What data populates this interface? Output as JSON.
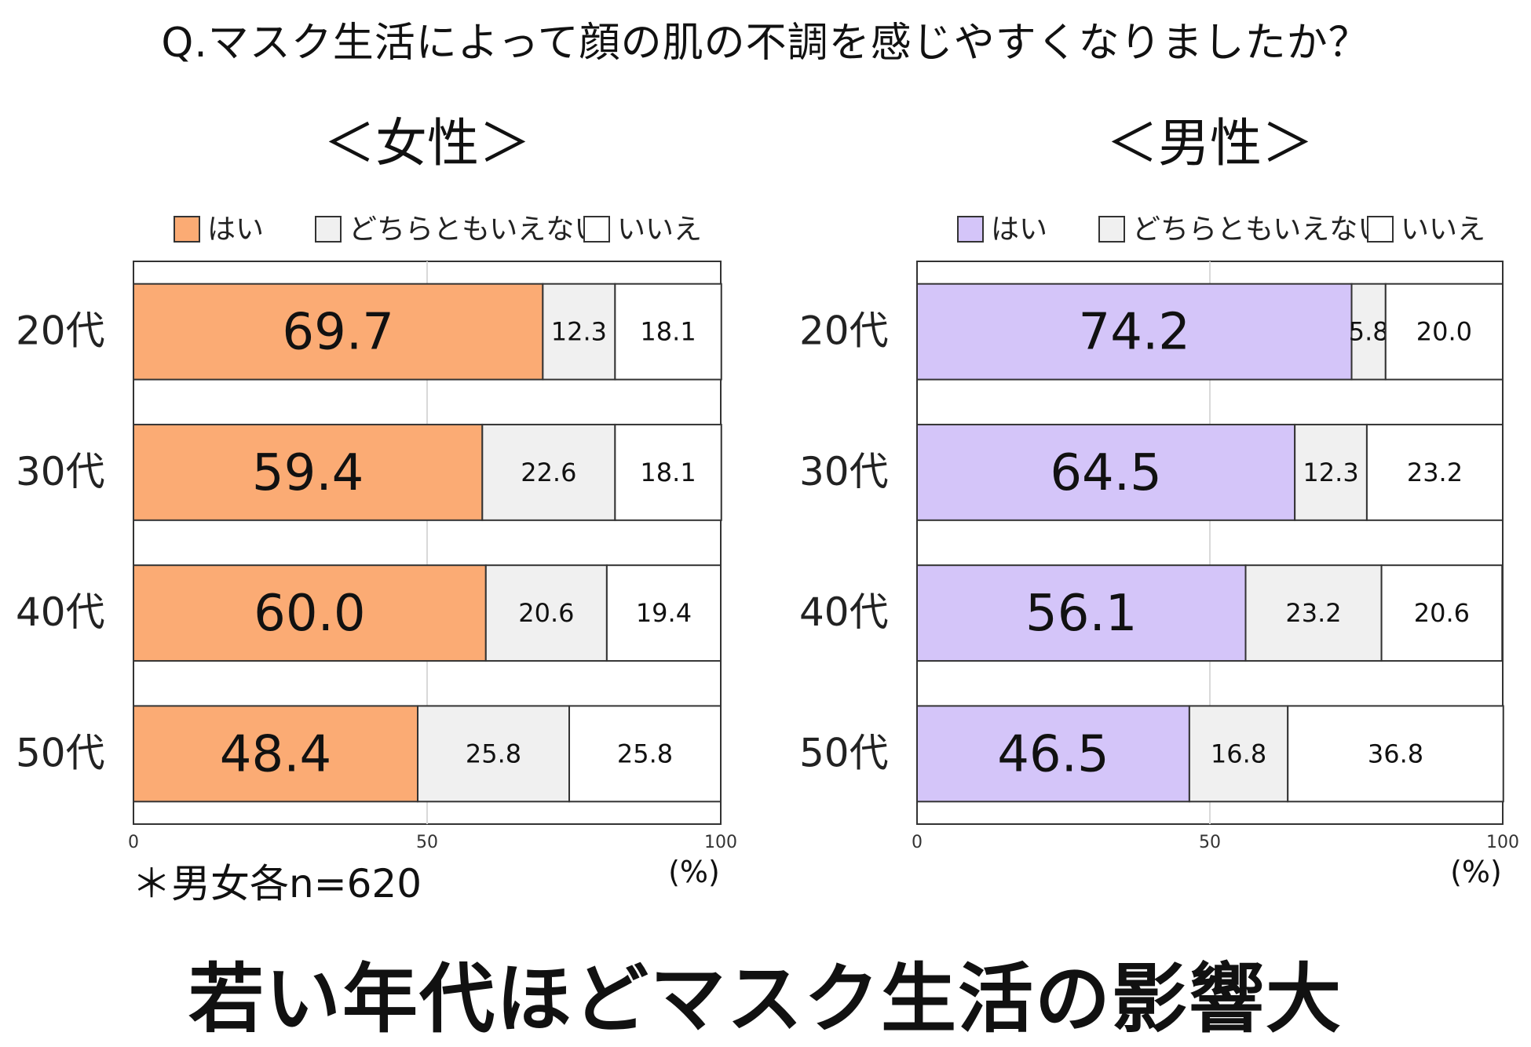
{
  "question": "Q.マスク生活によって顔の肌の不調を感じやすくなりましたか？",
  "note": "＊男女各n=620",
  "headline": "若い年代ほどマスク生活の影響大",
  "colors": {
    "female_yes": "#fbab74",
    "male_yes": "#d4c5f9",
    "neutral": "#f0f0f0",
    "no": "#ffffff",
    "border": "#333333"
  },
  "chart_data": [
    {
      "type": "bar",
      "orientation": "horizontal-stacked",
      "title": "＜女性＞",
      "categories": [
        "20代",
        "30代",
        "40代",
        "50代"
      ],
      "series": [
        {
          "name": "はい",
          "values": [
            69.7,
            59.4,
            60.0,
            48.4
          ]
        },
        {
          "name": "どちらともいえない",
          "values": [
            12.3,
            22.6,
            20.6,
            25.8
          ]
        },
        {
          "name": "いいえ",
          "values": [
            18.1,
            18.1,
            19.4,
            25.8
          ]
        }
      ],
      "xlim": [
        0,
        100
      ],
      "xticks": [
        0,
        50,
        100
      ],
      "unit_label": "(%)",
      "legend": "top",
      "grid": true
    },
    {
      "type": "bar",
      "orientation": "horizontal-stacked",
      "title": "＜男性＞",
      "categories": [
        "20代",
        "30代",
        "40代",
        "50代"
      ],
      "series": [
        {
          "name": "はい",
          "values": [
            74.2,
            64.5,
            56.1,
            46.5
          ]
        },
        {
          "name": "どちらともいえない",
          "values": [
            5.8,
            12.3,
            23.2,
            16.8
          ]
        },
        {
          "name": "いいえ",
          "values": [
            20.0,
            23.2,
            20.6,
            36.8
          ]
        }
      ],
      "xlim": [
        0,
        100
      ],
      "xticks": [
        0,
        50,
        100
      ],
      "unit_label": "(%)",
      "legend": "top",
      "grid": true
    }
  ]
}
